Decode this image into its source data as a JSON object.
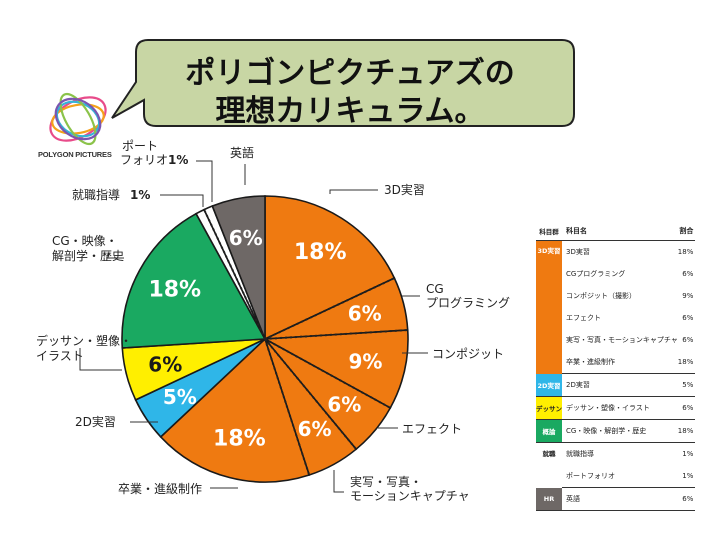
{
  "title": {
    "line1": "ポリゴンピクチュアズの",
    "line2": "理想カリキュラム。"
  },
  "logo": {
    "text": "POLYGON PICTURES"
  },
  "colors": {
    "bubble": "#c8d6a4",
    "orange": "#ef7a11",
    "green": "#1aa961",
    "yellow": "#ffef00",
    "cyan": "#2fb6e8",
    "gray": "#6e6866",
    "white": "#ffffff"
  },
  "chart_data": {
    "type": "pie",
    "slices": [
      {
        "label": "3D実習",
        "value": 18,
        "pct_label": "18%",
        "group": "3D実習",
        "color": "#ef7a11"
      },
      {
        "label": "CG プログラミング",
        "value": 6,
        "pct_label": "6%",
        "group": "3D実習",
        "color": "#ef7a11"
      },
      {
        "label": "コンポジット",
        "value": 9,
        "pct_label": "9%",
        "group": "3D実習",
        "color": "#ef7a11"
      },
      {
        "label": "エフェクト",
        "value": 6,
        "pct_label": "6%",
        "group": "3D実習",
        "color": "#ef7a11"
      },
      {
        "label": "実写・写真・モーションキャプチャ",
        "value": 6,
        "pct_label": "6%",
        "group": "3D実習",
        "color": "#ef7a11"
      },
      {
        "label": "卒業・進級制作",
        "value": 18,
        "pct_label": "18%",
        "group": "3D実習",
        "color": "#ef7a11"
      },
      {
        "label": "2D実習",
        "value": 5,
        "pct_label": "5%",
        "group": "2D実習",
        "color": "#2fb6e8"
      },
      {
        "label": "デッサン・塑像・イラスト",
        "value": 6,
        "pct_label": "6%",
        "group": "デッサン",
        "color": "#ffef00"
      },
      {
        "label": "CG・映像・解剖学・歴史",
        "value": 18,
        "pct_label": "18%",
        "group": "概論",
        "color": "#1aa961"
      },
      {
        "label": "就職指導",
        "value": 1,
        "pct_label": "1%",
        "group": "就職",
        "color": "#ffffff"
      },
      {
        "label": "ポートフォリオ",
        "value": 1,
        "pct_label": "1%",
        "group": "就職",
        "color": "#ffffff"
      },
      {
        "label": "英語",
        "value": 6,
        "pct_label": "6%",
        "group": "HR",
        "color": "#6e6866"
      }
    ],
    "callouts": {
      "eng": "英語",
      "port1": "ポート",
      "port2": "フォリオ",
      "port_pct": "1%",
      "shu": "就職指導",
      "shu_pct": "1%",
      "d3": "3D実習",
      "cg1": "CG",
      "cg2": "プログラミング",
      "comp": "コンポジット",
      "efx": "エフェクト",
      "live1": "実写・写真・",
      "live2": "モーションキャプチャ",
      "grad": "卒業・進級制作",
      "d2": "2D実習",
      "des1": "デッサン・塑像・",
      "des2": "イラスト",
      "cgv1": "CG・映像・",
      "cgv2": "解剖学・歴史"
    }
  },
  "table": {
    "headers": {
      "group": "科目群",
      "name": "科目名",
      "pct": "割合"
    },
    "rows": [
      {
        "group": "3D実習",
        "name": "3D実習",
        "pct": "18%"
      },
      {
        "group": "",
        "name": "CGプログラミング",
        "pct": "6%"
      },
      {
        "group": "",
        "name": "コンポジット（撮影）",
        "pct": "9%"
      },
      {
        "group": "",
        "name": "エフェクト",
        "pct": "6%"
      },
      {
        "group": "",
        "name": "実写・写真・モーションキャプチャ",
        "pct": "6%"
      },
      {
        "group": "",
        "name": "卒業・進級制作",
        "pct": "18%"
      },
      {
        "group": "2D実習",
        "name": "2D実習",
        "pct": "5%"
      },
      {
        "group": "デッサン",
        "name": "デッサン・塑像・イラスト",
        "pct": "6%"
      },
      {
        "group": "概論",
        "name": "CG・映像・解剖学・歴史",
        "pct": "18%"
      },
      {
        "group": "就職",
        "name": "就職指導",
        "pct": "1%"
      },
      {
        "group": "",
        "name": "ポートフォリオ",
        "pct": "1%"
      },
      {
        "group": "HR",
        "name": "英語",
        "pct": "6%"
      }
    ]
  }
}
